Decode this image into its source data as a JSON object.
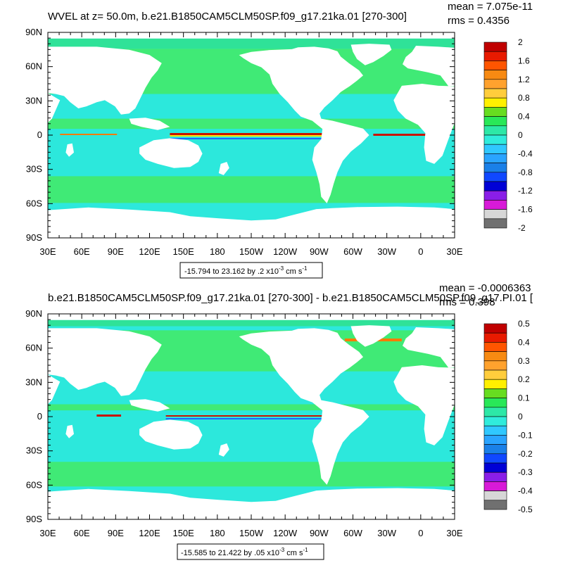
{
  "page": {
    "background": "#ffffff",
    "land_color": "#ffffff",
    "frame_color": "#000000"
  },
  "panels": [
    {
      "title": "WVEL at z=  50.0m, b.e21.B1850CAM5CLM50SP.f09_g17.21ka.01 [270-300]",
      "stats": {
        "mean": "mean = 7.075e-11",
        "rms": "rms = 0.4356"
      },
      "lat_labels": [
        "90N",
        "60N",
        "30N",
        "0",
        "30S",
        "60S",
        "90S"
      ],
      "lon_labels": [
        "30E",
        "60E",
        "90E",
        "120E",
        "150E",
        "180",
        "150W",
        "120W",
        "90W",
        "60W",
        "30W",
        "0",
        "30E"
      ],
      "contour_info": "-15.794 to 23.162 by .2 x10",
      "contour_exp": "-3",
      "contour_unit": " cm s",
      "contour_unit_exp": "-1",
      "colorbar": {
        "labels": [
          "2",
          "1.6",
          "1.2",
          "0.8",
          "0.4",
          "0",
          "-0.4",
          "-0.8",
          "-1.2",
          "-1.6",
          "-2"
        ],
        "colors": [
          "#c00000",
          "#e81a00",
          "#ff5500",
          "#f78a12",
          "#ffa22e",
          "#ffcd3c",
          "#fff000",
          "#67dd20",
          "#29e858",
          "#2de8a7",
          "#30ecdc",
          "#30c8ff",
          "#2aa4ff",
          "#1a80e8",
          "#1048ff",
          "#0000d6",
          "#8a1ee8",
          "#d81ad8",
          "#d7d7d7",
          "#707070"
        ]
      }
    },
    {
      "title": "b.e21.B1850CAM5CLM50SP.f09_g17.21ka.01 [270-300] - b.e21.B1850CAM5CLM50SP.f09_g17.PI.01 [",
      "stats": {
        "mean": "mean = -0.0006363",
        "rms": "rms = 0.398"
      },
      "lat_labels": [
        "90N",
        "60N",
        "30N",
        "0",
        "30S",
        "60S",
        "90S"
      ],
      "lon_labels": [
        "30E",
        "60E",
        "90E",
        "120E",
        "150E",
        "180",
        "150W",
        "120W",
        "90W",
        "60W",
        "30W",
        "0",
        "30E"
      ],
      "contour_info": "-15.585 to 21.422 by .05 x10",
      "contour_exp": "-3",
      "contour_unit": " cm s",
      "contour_unit_exp": "-1",
      "colorbar": {
        "labels": [
          "0.5",
          "0.4",
          "0.3",
          "0.2",
          "0.1",
          "0",
          "-0.1",
          "-0.2",
          "-0.3",
          "-0.4",
          "-0.5"
        ],
        "colors": [
          "#c00000",
          "#e81a00",
          "#ff5500",
          "#f78a12",
          "#ffa22e",
          "#ffcd3c",
          "#fff000",
          "#67dd20",
          "#29e858",
          "#2de8a7",
          "#30ecdc",
          "#30c8ff",
          "#2aa4ff",
          "#1a80e8",
          "#1048ff",
          "#0000d6",
          "#8a1ee8",
          "#d81ad8",
          "#d7d7d7",
          "#707070"
        ]
      }
    }
  ],
  "field_colors": {
    "ocean_base": "#2de8dc",
    "ocean_green": "#44ea64",
    "equator_red": "#c81400",
    "equator_orange": "#ff7a00",
    "equator_yellow": "#ffe400",
    "equator_blue": "#1e66ff",
    "ice_strip": "#30e08c"
  }
}
